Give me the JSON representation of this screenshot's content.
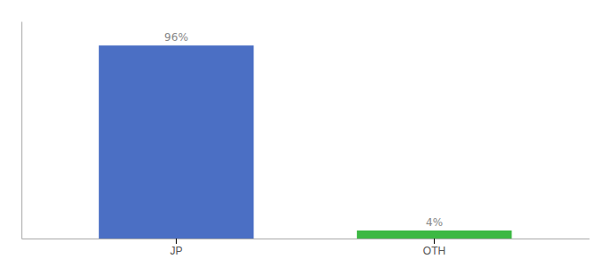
{
  "chart_data": {
    "type": "bar",
    "categories": [
      "JP",
      "OTH"
    ],
    "values": [
      96,
      4
    ],
    "value_labels": [
      "96%",
      "4%"
    ],
    "colors": [
      "#4b6fc4",
      "#3cb843"
    ],
    "ylim": [
      0,
      108
    ],
    "data_labels": true,
    "tick_labels": "x"
  }
}
